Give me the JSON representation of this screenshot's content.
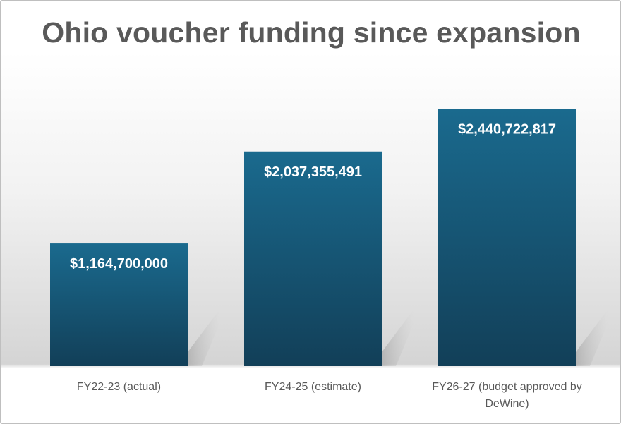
{
  "chart_data": {
    "type": "bar",
    "title": "Ohio voucher funding since expansion",
    "xlabel": "",
    "ylabel": "",
    "categories": [
      [
        "FY22-23 (actual)"
      ],
      [
        "FY24-25 (estimate)"
      ],
      [
        "FY26-27 (budget approved by",
        "DeWine)"
      ]
    ],
    "values": [
      1164700000,
      2037355491,
      2440722817
    ],
    "data_labels": [
      "$1,164,700,000",
      "$2,037,355,491",
      "$2,440,722,817"
    ],
    "ylim": [
      0,
      3000000000
    ],
    "grid": false,
    "legend": "none",
    "colors": {
      "bar_top": "#1a6a8e",
      "bar_bottom": "#123f58",
      "title": "#595959",
      "category_text": "#595959",
      "label_text": "#ffffff"
    }
  }
}
